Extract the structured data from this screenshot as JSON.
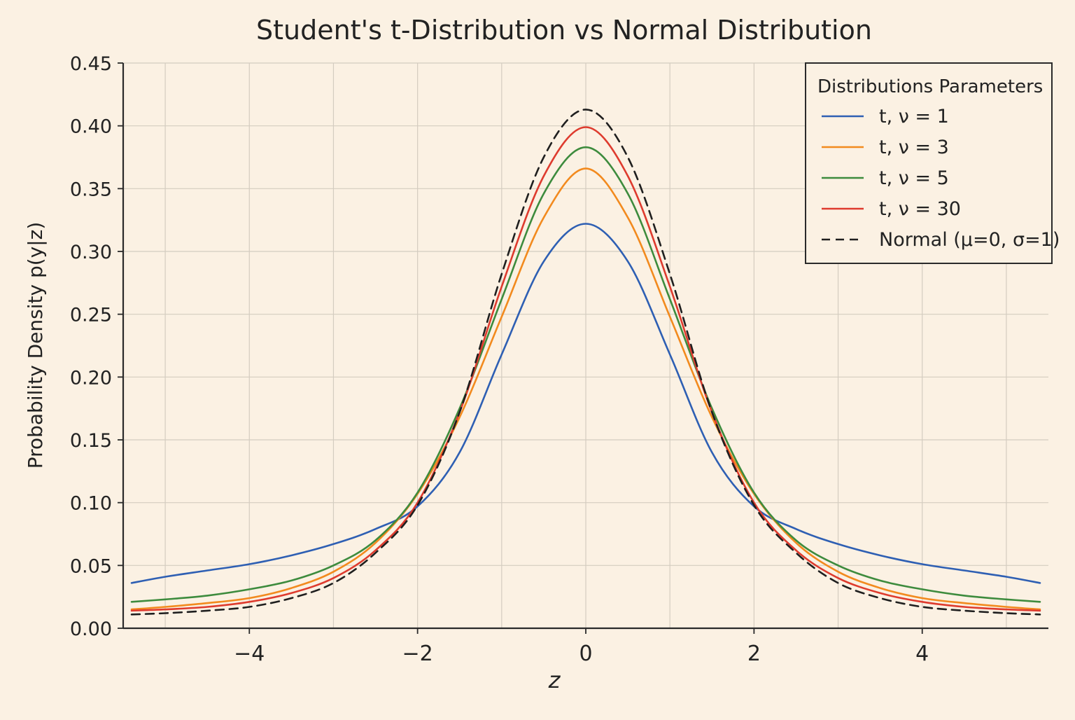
{
  "chart_data": {
    "type": "line",
    "title": "Student's t-Distribution vs Normal Distribution",
    "xlabel": "z",
    "ylabel": "Probability Density p(y|z)",
    "xlim": [
      -5.5,
      5.5
    ],
    "ylim": [
      0,
      0.45
    ],
    "x_ticks": [
      -4,
      -2,
      0,
      2,
      4
    ],
    "x_tick_labels": [
      "−4",
      "−2",
      "0",
      "2",
      "4"
    ],
    "x_grid": [
      -5,
      -4,
      -3,
      -2,
      -1,
      0,
      1,
      2,
      3,
      4,
      5
    ],
    "y_ticks": [
      0,
      0.05,
      0.1,
      0.15,
      0.2,
      0.25,
      0.3,
      0.35,
      0.4,
      0.45
    ],
    "y_tick_labels": [
      "0.00",
      "0.05",
      "0.10",
      "0.15",
      "0.20",
      "0.25",
      "0.30",
      "0.35",
      "0.40",
      "0.45"
    ],
    "grid": true,
    "legend": {
      "title": "Distributions Parameters",
      "position": "top-right"
    },
    "series": [
      {
        "name": "t, ν = 1",
        "color": "#2e5fb3",
        "dash": "solid",
        "x": [
          -5.4,
          -5,
          -4.5,
          -4,
          -3.5,
          -3,
          -2.5,
          -2,
          -1.5,
          -1,
          -0.5,
          0,
          0.5,
          1,
          1.5,
          2,
          2.5,
          3,
          3.5,
          4,
          4.5,
          5,
          5.4
        ],
        "y": [
          0.036,
          0.041,
          0.046,
          0.051,
          0.058,
          0.067,
          0.079,
          0.097,
          0.14,
          0.218,
          0.292,
          0.322,
          0.292,
          0.218,
          0.14,
          0.097,
          0.079,
          0.067,
          0.058,
          0.051,
          0.046,
          0.041,
          0.036
        ]
      },
      {
        "name": "t, ν = 3",
        "color": "#f28a1e",
        "dash": "solid",
        "x": [
          -5.4,
          -5,
          -4.5,
          -4,
          -3.5,
          -3,
          -2.5,
          -2,
          -1.5,
          -1,
          -0.5,
          0,
          0.5,
          1,
          1.5,
          2,
          2.5,
          3,
          3.5,
          4,
          4.5,
          5,
          5.4
        ],
        "y": [
          0.015,
          0.017,
          0.02,
          0.024,
          0.032,
          0.045,
          0.068,
          0.107,
          0.168,
          0.248,
          0.327,
          0.366,
          0.327,
          0.248,
          0.168,
          0.107,
          0.068,
          0.045,
          0.032,
          0.024,
          0.02,
          0.017,
          0.015
        ]
      },
      {
        "name": "t, ν = 5",
        "color": "#3d8b3d",
        "dash": "solid",
        "x": [
          -5.4,
          -5,
          -4.5,
          -4,
          -3.5,
          -3,
          -2.5,
          -2,
          -1.5,
          -1,
          -0.5,
          0,
          0.5,
          1,
          1.5,
          2,
          2.5,
          3,
          3.5,
          4,
          4.5,
          5,
          5.4
        ],
        "y": [
          0.021,
          0.023,
          0.026,
          0.031,
          0.038,
          0.05,
          0.07,
          0.108,
          0.175,
          0.262,
          0.346,
          0.383,
          0.346,
          0.262,
          0.175,
          0.108,
          0.07,
          0.05,
          0.038,
          0.031,
          0.026,
          0.023,
          0.021
        ]
      },
      {
        "name": "t, ν = 30",
        "color": "#de3b2e",
        "dash": "solid",
        "x": [
          -5.4,
          -5,
          -4.5,
          -4,
          -3.5,
          -3,
          -2.5,
          -2,
          -1.5,
          -1,
          -0.5,
          0,
          0.5,
          1,
          1.5,
          2,
          2.5,
          3,
          3.5,
          4,
          4.5,
          5,
          5.4
        ],
        "y": [
          0.014,
          0.015,
          0.017,
          0.021,
          0.028,
          0.04,
          0.062,
          0.1,
          0.172,
          0.272,
          0.36,
          0.399,
          0.36,
          0.272,
          0.172,
          0.1,
          0.062,
          0.04,
          0.028,
          0.021,
          0.017,
          0.015,
          0.014
        ]
      },
      {
        "name": "Normal (μ=0, σ=1)",
        "color": "#1f1f1f",
        "dash": "dashed",
        "x": [
          -5.4,
          -5,
          -4.5,
          -4,
          -3.5,
          -3,
          -2.5,
          -2,
          -1.5,
          -1,
          -0.5,
          0,
          0.5,
          1,
          1.5,
          2,
          2.5,
          3,
          3.5,
          4,
          4.5,
          5,
          5.4
        ],
        "y": [
          0.011,
          0.012,
          0.014,
          0.017,
          0.024,
          0.036,
          0.06,
          0.098,
          0.172,
          0.282,
          0.375,
          0.413,
          0.375,
          0.282,
          0.172,
          0.098,
          0.06,
          0.036,
          0.024,
          0.017,
          0.014,
          0.012,
          0.011
        ]
      }
    ]
  }
}
